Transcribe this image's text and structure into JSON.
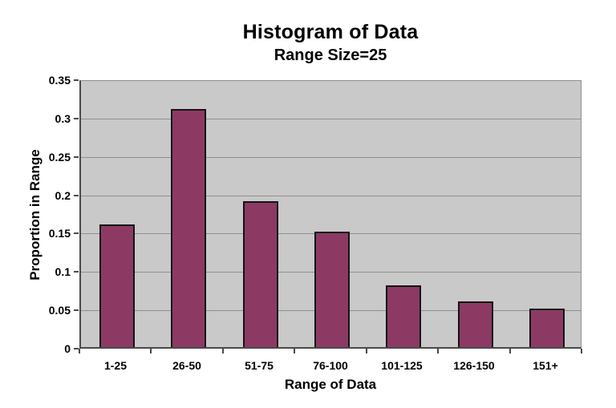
{
  "chart_data": {
    "type": "bar",
    "title": "Histogram of Data",
    "subtitle": "Range Size=25",
    "xlabel": "Range of Data",
    "ylabel": "Proportion in Range",
    "categories": [
      "1-25",
      "26-50",
      "51-75",
      "76-100",
      "101-125",
      "126-150",
      "151+"
    ],
    "values": [
      0.16,
      0.31,
      0.19,
      0.15,
      0.08,
      0.06,
      0.05
    ],
    "ylim": [
      0,
      0.35
    ],
    "ytick_interval": 0.05,
    "ytick_labels": [
      "0",
      "0.05",
      "0.1",
      "0.15",
      "0.2",
      "0.25",
      "0.3",
      "0.35"
    ],
    "grid": "horizontal",
    "legend": "none",
    "colors": {
      "bar_fill": "#8C3A64",
      "bar_border": "#141414",
      "plot_background": "#C9C9C9",
      "gridline": "#8F8F8F",
      "axis_line": "#4A4A4A",
      "text": "#000000",
      "page_background": "#FFFFFF"
    }
  }
}
